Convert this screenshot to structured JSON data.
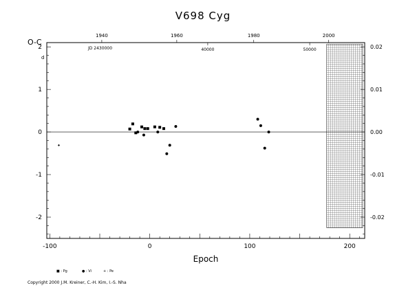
{
  "chart_data": {
    "type": "scatter",
    "title": "V698 Cyg",
    "xlabel": "Epoch",
    "ylabel": "O-C",
    "y_unit_superscript": "d",
    "xlim": [
      -103,
      215
    ],
    "ylim": [
      -2.5,
      2.1
    ],
    "x_ticks": [
      -100,
      0,
      100,
      200
    ],
    "y_ticks": [
      -2,
      -1,
      0,
      1,
      2
    ],
    "y2_ticks": [
      "-0.02",
      "-0.01",
      "0.00",
      "0.01",
      "0.02"
    ],
    "y2_positions": [
      -2.0,
      -1.0,
      0.0,
      1.0,
      2.0
    ],
    "year_ticks": [
      {
        "label": "1940",
        "epoch": -48
      },
      {
        "label": "1960",
        "epoch": 27
      },
      {
        "label": "1980",
        "epoch": 104
      },
      {
        "label": "2000",
        "epoch": 179
      }
    ],
    "jd_ticks": [
      {
        "label": "40000",
        "epoch": 58
      },
      {
        "label": "50000",
        "epoch": 160
      }
    ],
    "jd_label": "JD 2430000",
    "hatched_region": [
      177,
      215
    ],
    "grid": false,
    "series": [
      {
        "name": "Pg",
        "marker": "square",
        "points": [
          [
            -20,
            0.07
          ],
          [
            -17,
            0.19
          ],
          [
            -14,
            -0.02
          ],
          [
            -8,
            0.12
          ],
          [
            -5,
            0.08
          ],
          [
            -2,
            0.08
          ],
          [
            5,
            0.12
          ],
          [
            10,
            0.11
          ],
          [
            14,
            0.08
          ]
        ]
      },
      {
        "name": "Vi",
        "marker": "circle",
        "points": [
          [
            -12,
            0.0
          ],
          [
            -6,
            -0.07
          ],
          [
            8,
            0.0
          ],
          [
            17,
            -0.51
          ],
          [
            20,
            -0.31
          ],
          [
            26,
            0.13
          ],
          [
            108,
            0.3
          ],
          [
            111,
            0.15
          ],
          [
            115,
            -0.38
          ],
          [
            119,
            0.0
          ]
        ]
      },
      {
        "name": "Pe",
        "marker": "plus",
        "points": [
          [
            -91,
            -0.31
          ]
        ]
      }
    ],
    "legend": [
      {
        "symbol": "■",
        "label": ": Pg"
      },
      {
        "symbol": "●",
        "label": ": Vi"
      },
      {
        "symbol": "+",
        "label": ": Pe"
      }
    ]
  },
  "copyright": "Copyright 2000 J.M. Kreiner, C.-H. Kim, I.-S. Nha"
}
